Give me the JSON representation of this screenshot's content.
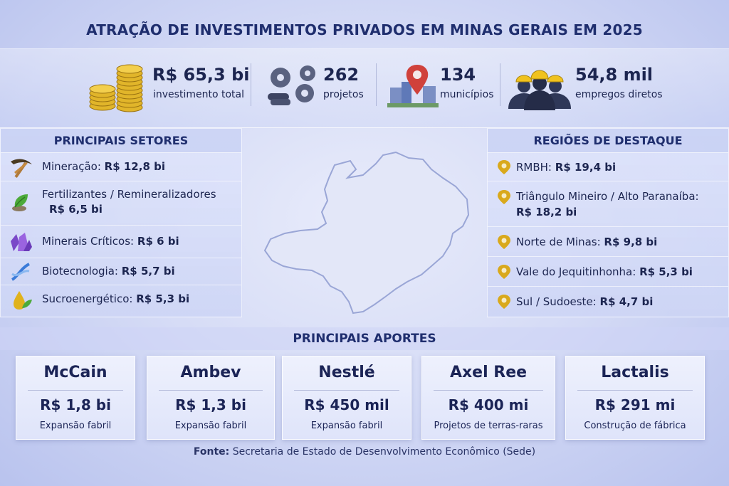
{
  "title": "ATRAÇÃO DE INVESTIMENTOS PRIVADOS EM MINAS GERAIS EM 2025",
  "kpis": [
    {
      "value": "R$ 65,3 bi",
      "label": "investimento total",
      "icon": "coins-icon"
    },
    {
      "value": "262",
      "label": "projetos",
      "icon": "gears-icon"
    },
    {
      "value": "134",
      "label": "municípios",
      "icon": "city-pin-icon"
    },
    {
      "value": "54,8 mil",
      "label": "empregos diretos",
      "icon": "workers-icon"
    }
  ],
  "sectors": {
    "heading": "PRINCIPAIS SETORES",
    "items": [
      {
        "name": "Mineração:",
        "value": "R$ 12,8 bi",
        "icon": "pickaxe-icon"
      },
      {
        "name": "Fertilizantes / Remineralizadores",
        "value": "R$ 6,5 bi",
        "icon": "leaf-icon"
      },
      {
        "name": "Minerais Críticos:",
        "value": "R$ 6 bi",
        "icon": "crystal-icon"
      },
      {
        "name": "Biotecnologia:",
        "value": "R$ 5,7 bi",
        "icon": "dna-icon"
      },
      {
        "name": "Sucroenergético:",
        "value": "R$ 5,3 bi",
        "icon": "drop-leaf-icon"
      }
    ]
  },
  "regions": {
    "heading": "REGIÕES DE DESTAQUE",
    "items": [
      {
        "name": "RMBH:",
        "value": "R$ 19,4 bi"
      },
      {
        "name": "Triângulo Mineiro / Alto Paranaíba:",
        "value": "R$ 18,2 bi"
      },
      {
        "name": "Norte de Minas:",
        "value": "R$ 9,8 bi"
      },
      {
        "name": "Vale do Jequitinhonha:",
        "value": "R$ 5,3 bi"
      },
      {
        "name": "Sul / Sudoeste:",
        "value": "R$ 4,7 bi"
      }
    ]
  },
  "aportes": {
    "heading": "PRINCIPAIS APORTES",
    "items": [
      {
        "company": "McCain",
        "amount": "R$ 1,8 bi",
        "desc": "Expansão fabril"
      },
      {
        "company": "Ambev",
        "amount": "R$ 1,3 bi",
        "desc": "Expansão fabril"
      },
      {
        "company": "Nestlé",
        "amount": "R$ 450 mil",
        "desc": "Expansão fabril"
      },
      {
        "company": "Axel Ree",
        "amount": "R$ 400 mi",
        "desc": "Projetos de terras-raras"
      },
      {
        "company": "Lactalis",
        "amount": "R$ 291 mi",
        "desc": "Construção de fábrica"
      }
    ]
  },
  "source": {
    "label": "Fonte:",
    "text": "Secretaria de Estado de Desenvolvimento Econômico (Sede)"
  },
  "colors": {
    "title": "#1f2e6e",
    "gold": "#d9a91c",
    "pin_red": "#d0413b"
  }
}
